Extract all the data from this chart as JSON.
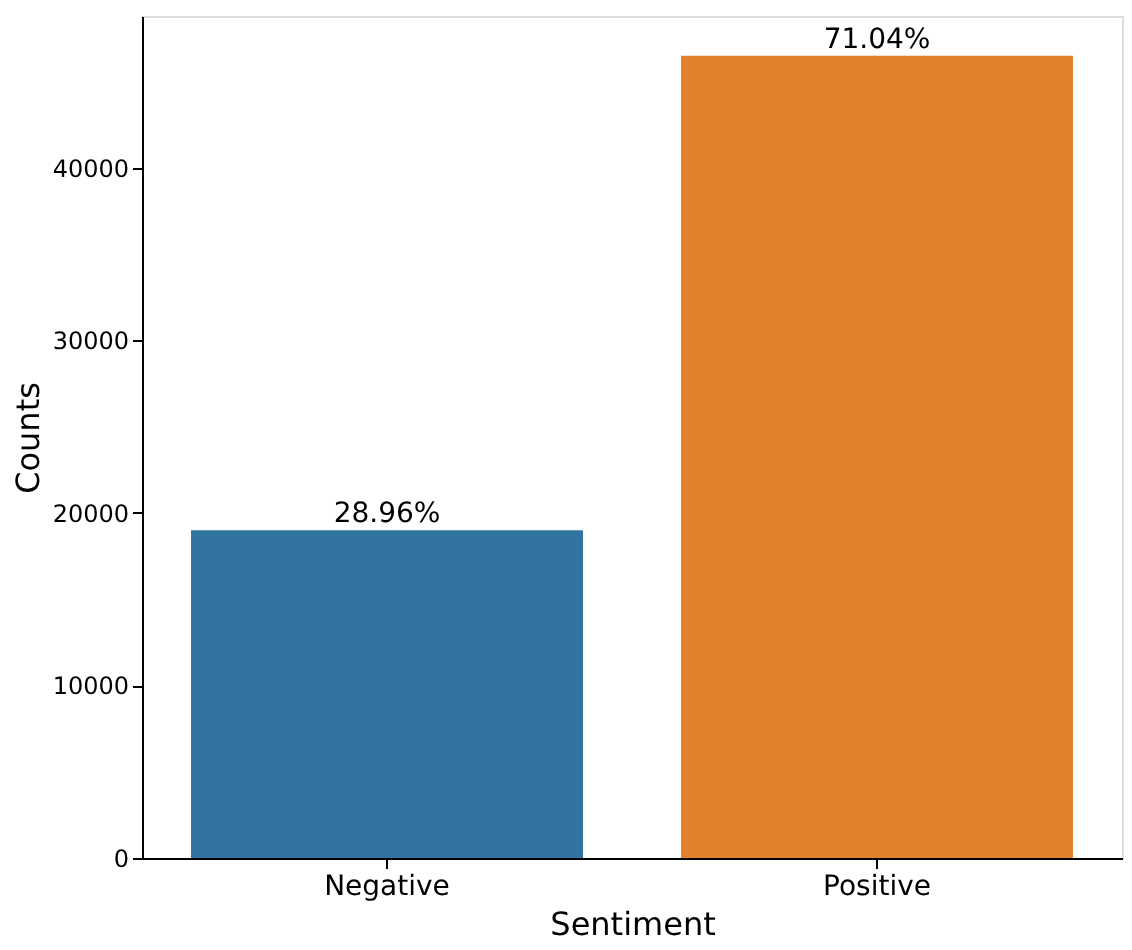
{
  "chart_data": {
    "type": "bar",
    "xlabel": "Sentiment",
    "ylabel": "Counts",
    "categories": [
      "Negative",
      "Positive"
    ],
    "values": [
      19000,
      46500
    ],
    "colors": [
      "#3274a1",
      "#e1812c"
    ],
    "annotations": [
      {
        "text": "28.96%",
        "x": "Negative",
        "y": 19000
      },
      {
        "text": "71.04%",
        "x": "Positive",
        "y": 46500
      }
    ],
    "ylim": [
      0,
      48800
    ],
    "yticks": [
      0,
      10000,
      20000,
      30000,
      40000
    ],
    "grid": false,
    "legend": false
  }
}
